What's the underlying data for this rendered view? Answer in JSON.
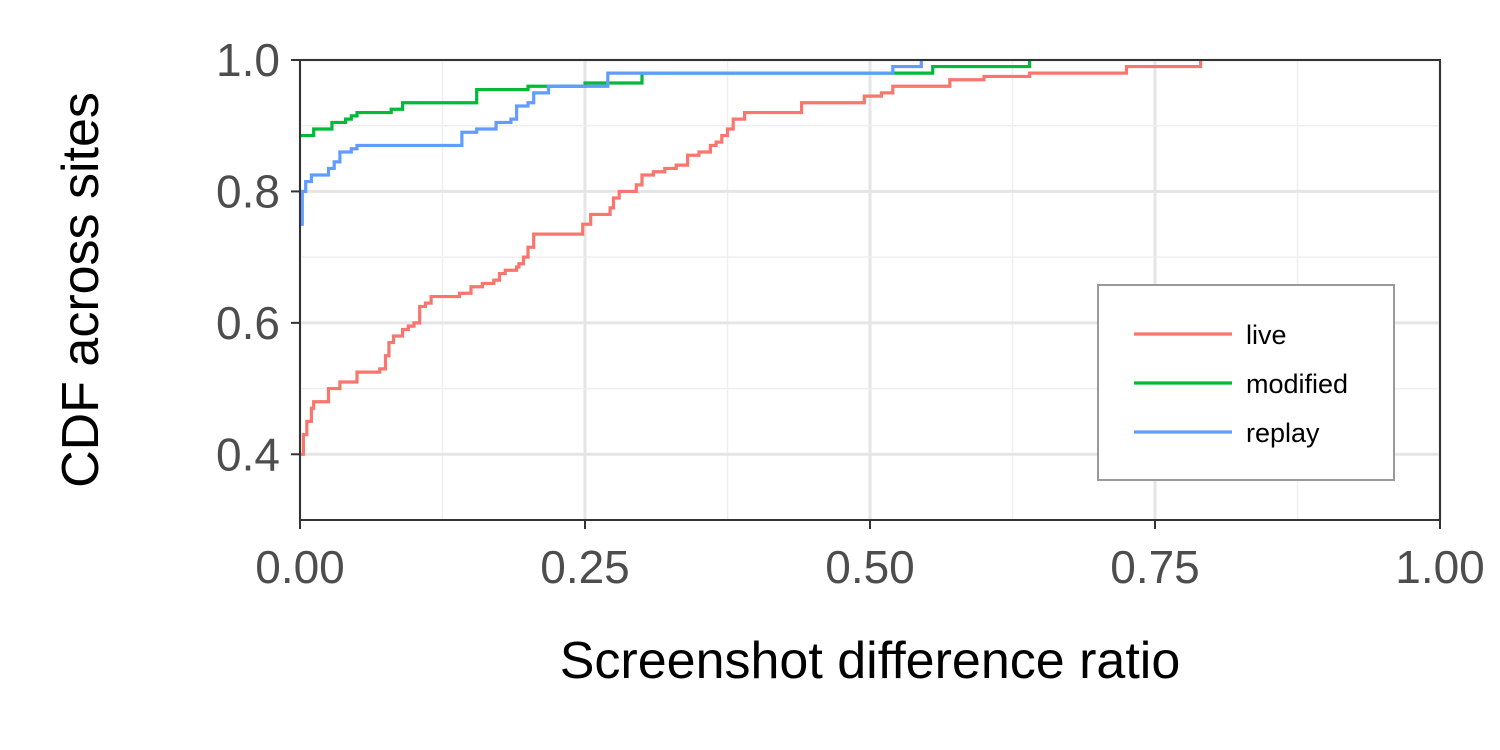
{
  "chart_data": {
    "type": "line",
    "step": true,
    "title": "",
    "xlabel": "Screenshot difference ratio",
    "ylabel": "CDF across sites",
    "xlim": [
      0,
      1
    ],
    "ylim": [
      0.3,
      1.0
    ],
    "xticks": [
      0,
      0.25,
      0.5,
      0.75,
      1.0
    ],
    "xtick_labels": [
      "0.00",
      "0.25",
      "0.50",
      "0.75",
      "1.00"
    ],
    "yticks": [
      0.4,
      0.6,
      0.8,
      1.0
    ],
    "ytick_labels": [
      "0.4",
      "0.6",
      "0.8",
      "1.0"
    ],
    "grid": true,
    "legend_position": "bottom-right",
    "series": [
      {
        "name": "live",
        "color": "#F8766D",
        "points": [
          [
            0.0,
            0.4
          ],
          [
            0.003,
            0.43
          ],
          [
            0.006,
            0.45
          ],
          [
            0.01,
            0.47
          ],
          [
            0.012,
            0.48
          ],
          [
            0.02,
            0.48
          ],
          [
            0.025,
            0.5
          ],
          [
            0.03,
            0.5
          ],
          [
            0.035,
            0.51
          ],
          [
            0.045,
            0.51
          ],
          [
            0.05,
            0.525
          ],
          [
            0.065,
            0.525
          ],
          [
            0.07,
            0.53
          ],
          [
            0.075,
            0.55
          ],
          [
            0.078,
            0.57
          ],
          [
            0.082,
            0.58
          ],
          [
            0.09,
            0.59
          ],
          [
            0.095,
            0.595
          ],
          [
            0.1,
            0.6
          ],
          [
            0.105,
            0.625
          ],
          [
            0.11,
            0.63
          ],
          [
            0.115,
            0.64
          ],
          [
            0.13,
            0.64
          ],
          [
            0.14,
            0.645
          ],
          [
            0.15,
            0.655
          ],
          [
            0.16,
            0.66
          ],
          [
            0.17,
            0.665
          ],
          [
            0.175,
            0.675
          ],
          [
            0.18,
            0.68
          ],
          [
            0.19,
            0.685
          ],
          [
            0.192,
            0.69
          ],
          [
            0.196,
            0.7
          ],
          [
            0.2,
            0.715
          ],
          [
            0.205,
            0.735
          ],
          [
            0.24,
            0.735
          ],
          [
            0.248,
            0.75
          ],
          [
            0.255,
            0.765
          ],
          [
            0.27,
            0.765
          ],
          [
            0.272,
            0.775
          ],
          [
            0.275,
            0.79
          ],
          [
            0.28,
            0.8
          ],
          [
            0.29,
            0.8
          ],
          [
            0.295,
            0.81
          ],
          [
            0.3,
            0.825
          ],
          [
            0.31,
            0.83
          ],
          [
            0.32,
            0.835
          ],
          [
            0.33,
            0.84
          ],
          [
            0.34,
            0.855
          ],
          [
            0.35,
            0.86
          ],
          [
            0.355,
            0.86
          ],
          [
            0.36,
            0.87
          ],
          [
            0.365,
            0.875
          ],
          [
            0.37,
            0.885
          ],
          [
            0.375,
            0.895
          ],
          [
            0.38,
            0.91
          ],
          [
            0.39,
            0.92
          ],
          [
            0.43,
            0.92
          ],
          [
            0.44,
            0.935
          ],
          [
            0.49,
            0.935
          ],
          [
            0.495,
            0.945
          ],
          [
            0.51,
            0.95
          ],
          [
            0.52,
            0.96
          ],
          [
            0.57,
            0.97
          ],
          [
            0.6,
            0.975
          ],
          [
            0.64,
            0.98
          ],
          [
            0.72,
            0.98
          ],
          [
            0.725,
            0.99
          ],
          [
            0.79,
            0.99
          ],
          [
            0.79,
            1.0
          ]
        ]
      },
      {
        "name": "modified",
        "color": "#00BA38",
        "points": [
          [
            0.0,
            0.885
          ],
          [
            0.01,
            0.885
          ],
          [
            0.012,
            0.895
          ],
          [
            0.025,
            0.895
          ],
          [
            0.028,
            0.905
          ],
          [
            0.035,
            0.905
          ],
          [
            0.04,
            0.91
          ],
          [
            0.045,
            0.915
          ],
          [
            0.05,
            0.92
          ],
          [
            0.08,
            0.925
          ],
          [
            0.09,
            0.935
          ],
          [
            0.15,
            0.935
          ],
          [
            0.155,
            0.955
          ],
          [
            0.19,
            0.955
          ],
          [
            0.2,
            0.96
          ],
          [
            0.24,
            0.96
          ],
          [
            0.25,
            0.965
          ],
          [
            0.3,
            0.965
          ],
          [
            0.3,
            0.98
          ],
          [
            0.55,
            0.98
          ],
          [
            0.555,
            0.99
          ],
          [
            0.64,
            0.99
          ],
          [
            0.64,
            1.0
          ]
        ]
      },
      {
        "name": "replay",
        "color": "#619CFF",
        "points": [
          [
            0.0,
            0.75
          ],
          [
            0.002,
            0.8
          ],
          [
            0.005,
            0.815
          ],
          [
            0.01,
            0.825
          ],
          [
            0.02,
            0.825
          ],
          [
            0.025,
            0.835
          ],
          [
            0.03,
            0.845
          ],
          [
            0.035,
            0.86
          ],
          [
            0.045,
            0.865
          ],
          [
            0.05,
            0.87
          ],
          [
            0.14,
            0.87
          ],
          [
            0.142,
            0.89
          ],
          [
            0.155,
            0.895
          ],
          [
            0.17,
            0.895
          ],
          [
            0.172,
            0.905
          ],
          [
            0.185,
            0.91
          ],
          [
            0.19,
            0.93
          ],
          [
            0.2,
            0.935
          ],
          [
            0.205,
            0.95
          ],
          [
            0.215,
            0.95
          ],
          [
            0.218,
            0.96
          ],
          [
            0.26,
            0.96
          ],
          [
            0.27,
            0.98
          ],
          [
            0.52,
            0.98
          ],
          [
            0.52,
            0.99
          ],
          [
            0.545,
            0.99
          ],
          [
            0.545,
            1.0
          ]
        ]
      }
    ]
  }
}
